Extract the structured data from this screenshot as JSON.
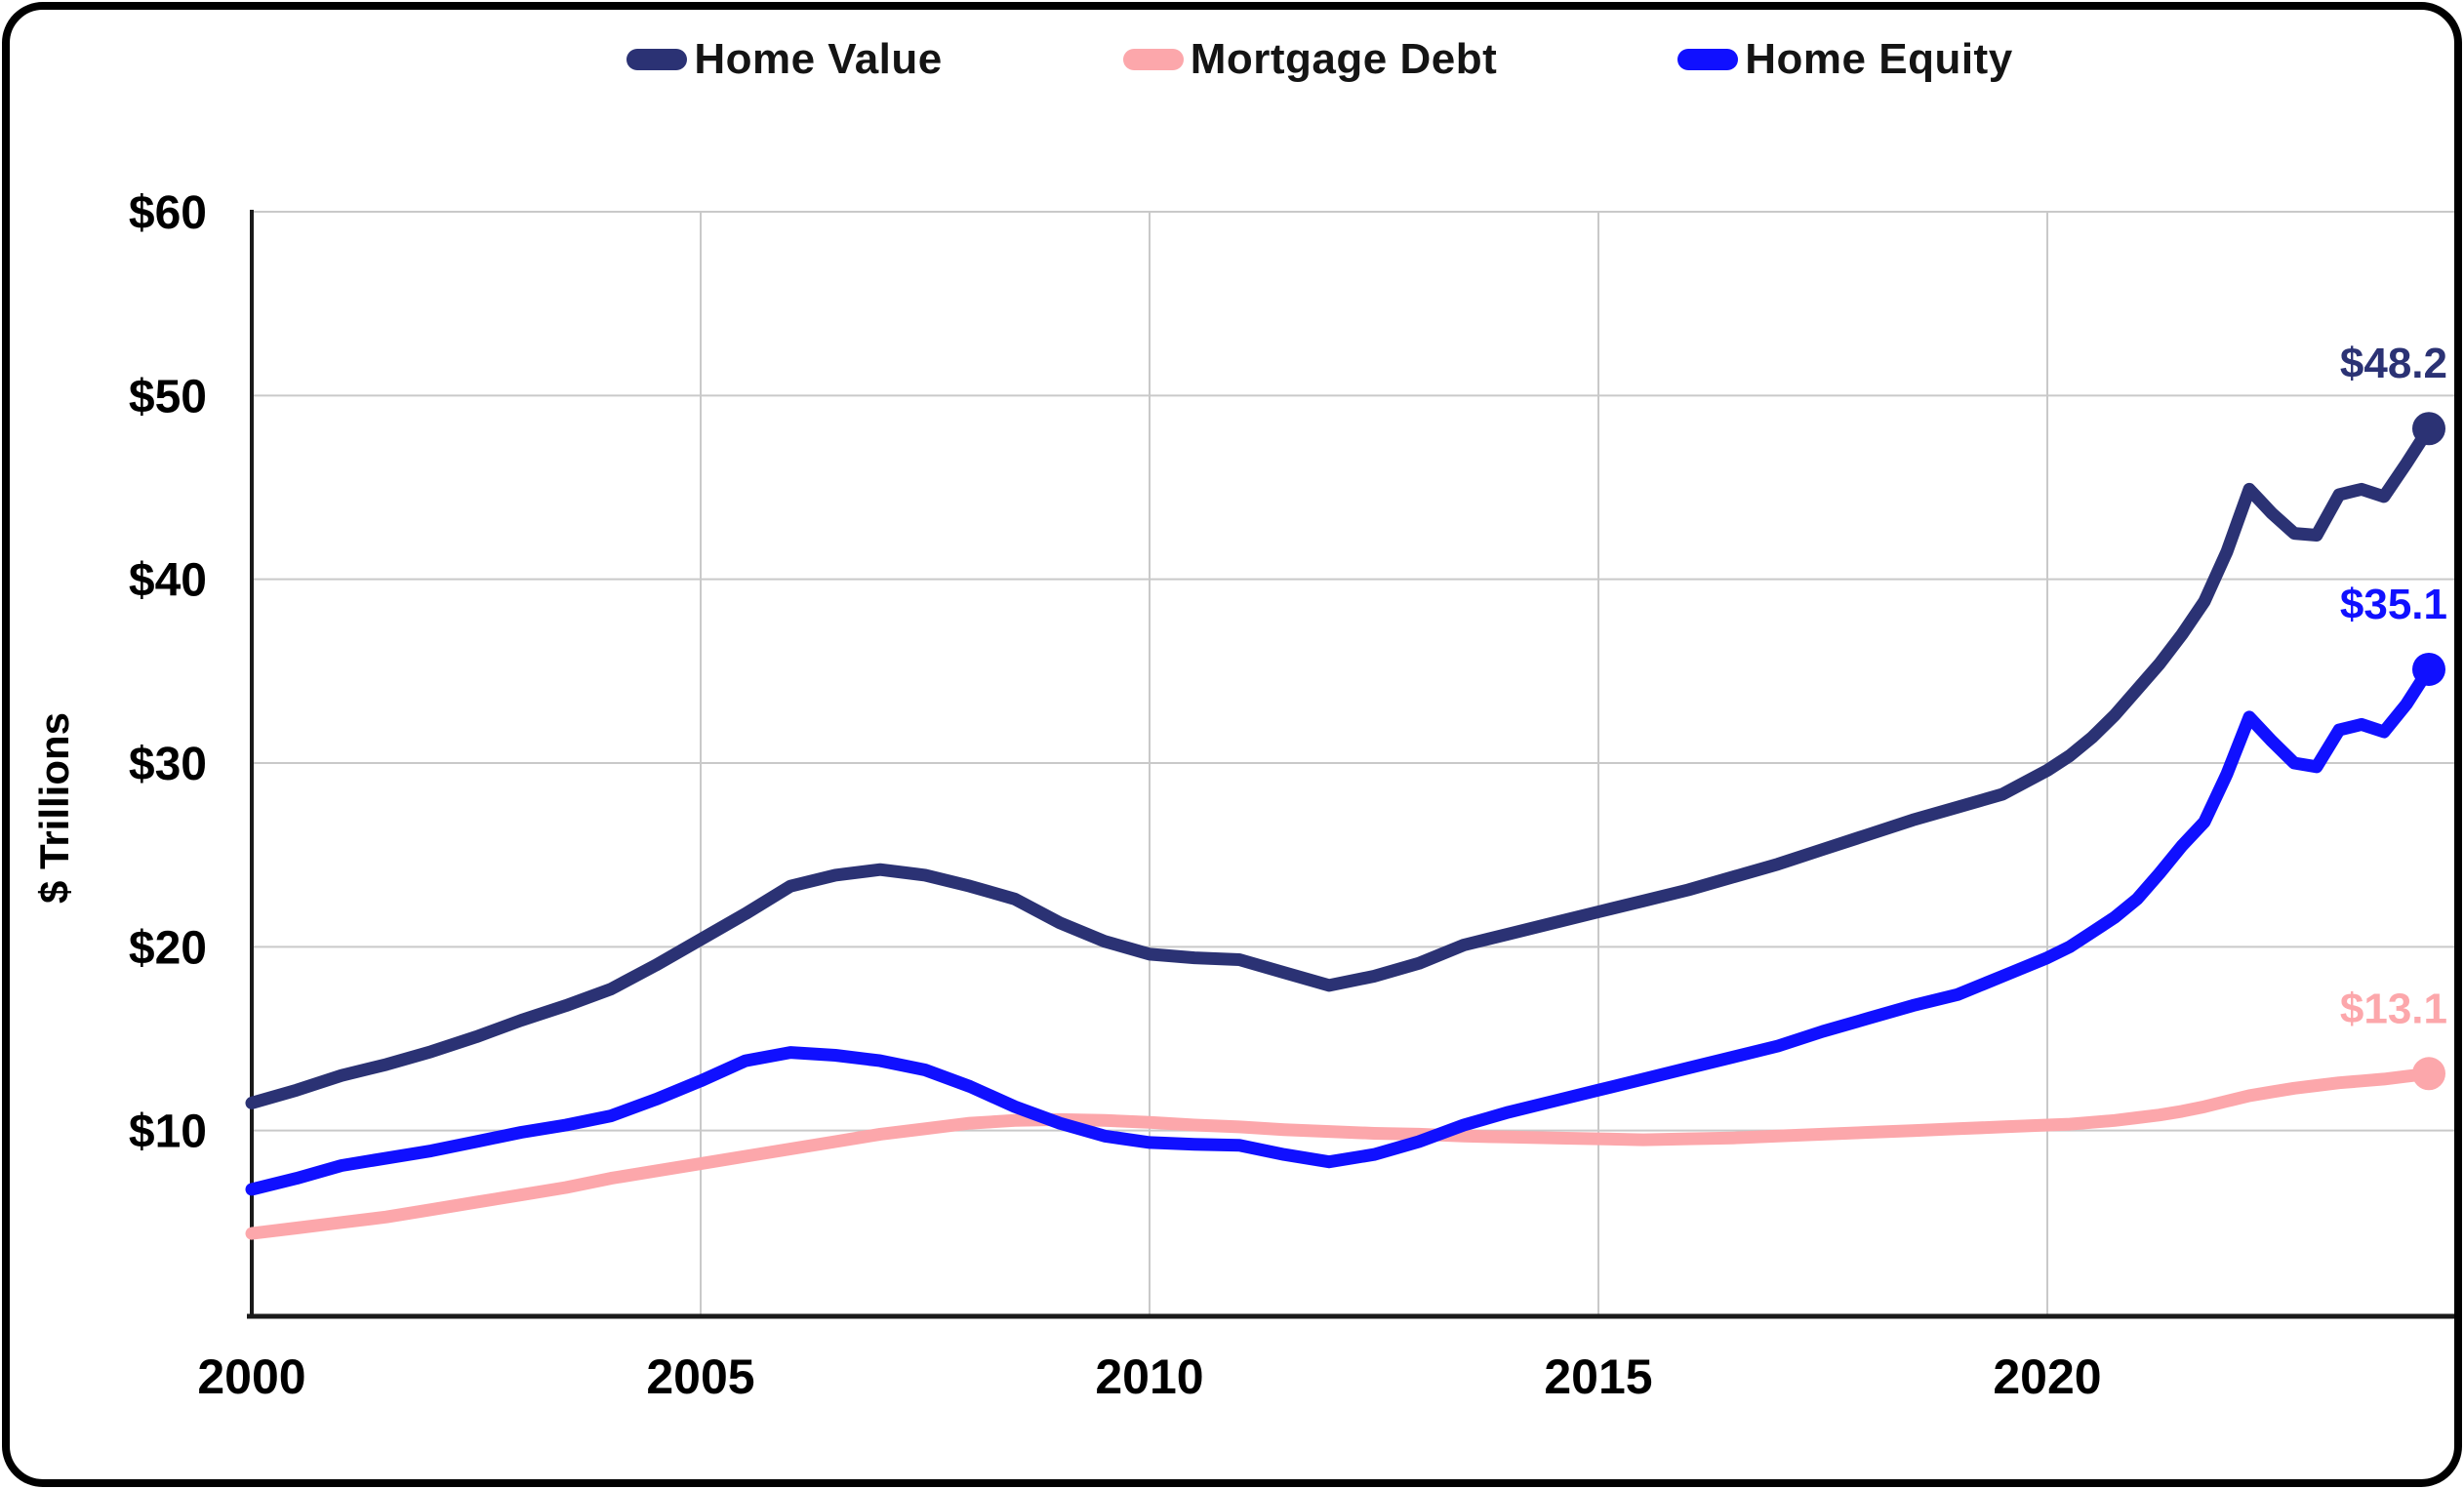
{
  "chart_data": {
    "type": "line",
    "ylabel": "$ Trillions",
    "xlim": [
      2000,
      2024.25
    ],
    "ylim": [
      0,
      60
    ],
    "grid": true,
    "legend_position": "top",
    "x_ticks": [
      2000,
      2005,
      2010,
      2015,
      2020
    ],
    "x_tick_labels": [
      "2000",
      "2005",
      "2010",
      "2015",
      "2020"
    ],
    "y_ticks": [
      10,
      20,
      30,
      40,
      50,
      60
    ],
    "y_tick_labels": [
      "$10",
      "$20",
      "$30",
      "$40",
      "$50",
      "$60"
    ],
    "x": [
      2000,
      2000.5,
      2001,
      2001.5,
      2002,
      2002.5,
      2003,
      2003.5,
      2004,
      2004.5,
      2005,
      2005.5,
      2006,
      2006.5,
      2007,
      2007.5,
      2008,
      2008.5,
      2009,
      2009.5,
      2010,
      2010.5,
      2011,
      2011.5,
      2012,
      2012.5,
      2013,
      2013.5,
      2014,
      2014.5,
      2015,
      2015.5,
      2016,
      2016.5,
      2017,
      2017.5,
      2018,
      2018.5,
      2019,
      2019.5,
      2020,
      2020.25,
      2020.5,
      2020.75,
      2021,
      2021.25,
      2021.5,
      2021.75,
      2022,
      2022.25,
      2022.5,
      2022.75,
      2023,
      2023.25,
      2023.5,
      2023.75,
      2024,
      2024.25
    ],
    "series": [
      {
        "name": "Home Value",
        "color": "#2B3274",
        "end_label": "$48.2",
        "values": [
          11.5,
          12.2,
          13.0,
          13.6,
          14.3,
          15.1,
          16.0,
          16.8,
          17.7,
          19.0,
          20.4,
          21.8,
          23.3,
          23.9,
          24.2,
          23.9,
          23.3,
          22.6,
          21.3,
          20.3,
          19.6,
          19.4,
          19.3,
          18.6,
          17.9,
          18.4,
          19.1,
          20.1,
          20.7,
          21.3,
          21.9,
          22.5,
          23.1,
          23.8,
          24.5,
          25.3,
          26.1,
          26.9,
          27.6,
          28.3,
          29.6,
          30.4,
          31.4,
          32.6,
          34.0,
          35.4,
          37.0,
          38.8,
          41.5,
          44.9,
          43.6,
          42.5,
          42.4,
          44.6,
          44.9,
          44.5,
          46.3,
          48.2
        ]
      },
      {
        "name": "Mortgage Debt",
        "color": "#FCA7AB",
        "end_label": "$13.1",
        "values": [
          4.4,
          4.7,
          5.0,
          5.3,
          5.7,
          6.1,
          6.5,
          6.9,
          7.4,
          7.8,
          8.2,
          8.6,
          9.0,
          9.4,
          9.8,
          10.1,
          10.4,
          10.55,
          10.6,
          10.55,
          10.45,
          10.3,
          10.2,
          10.05,
          9.95,
          9.85,
          9.8,
          9.7,
          9.65,
          9.6,
          9.55,
          9.5,
          9.55,
          9.6,
          9.7,
          9.8,
          9.9,
          10.0,
          10.1,
          10.2,
          10.3,
          10.35,
          10.45,
          10.55,
          10.7,
          10.85,
          11.05,
          11.3,
          11.6,
          11.9,
          12.1,
          12.3,
          12.45,
          12.6,
          12.7,
          12.8,
          12.95,
          13.1
        ]
      },
      {
        "name": "Home Equity",
        "color": "#1010FF",
        "end_label": "$35.1",
        "values": [
          6.8,
          7.4,
          8.1,
          8.5,
          8.9,
          9.4,
          9.9,
          10.3,
          10.8,
          11.7,
          12.7,
          13.8,
          14.25,
          14.1,
          13.8,
          13.3,
          12.4,
          11.3,
          10.4,
          9.7,
          9.35,
          9.25,
          9.2,
          8.7,
          8.3,
          8.7,
          9.4,
          10.3,
          11.0,
          11.6,
          12.2,
          12.8,
          13.4,
          14.0,
          14.6,
          15.4,
          16.1,
          16.8,
          17.4,
          18.4,
          19.4,
          20.0,
          20.8,
          21.6,
          22.6,
          24.0,
          25.5,
          26.8,
          29.4,
          32.5,
          31.2,
          30.0,
          29.8,
          31.8,
          32.1,
          31.7,
          33.2,
          35.1
        ]
      }
    ]
  },
  "colors": {
    "grid": "#C9C9C9",
    "axis": "#1A1A1A",
    "tick_text": "#000000",
    "legend_text": "#141414",
    "background": "#FFFFFF",
    "frame_border": "#000000"
  }
}
